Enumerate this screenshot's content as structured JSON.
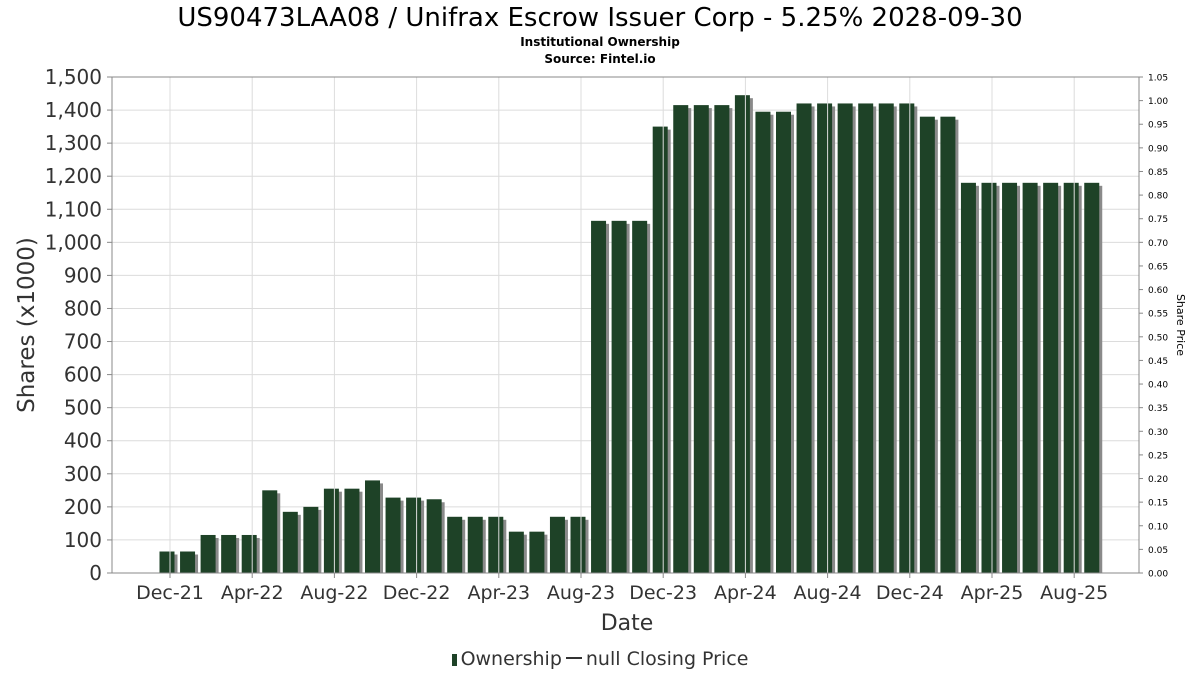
{
  "title": "US90473LAA08 / Unifrax Escrow Issuer Corp - 5.25% 2028-09-30",
  "subtitle1": "Institutional Ownership",
  "subtitle2": "Source: Fintel.io",
  "legend": {
    "ownership_label": "Ownership",
    "price_label": "null Closing Price"
  },
  "colors": {
    "bar": "#1e4227",
    "shadow": "#8a8a8a",
    "grid": "#dcdcdc"
  },
  "chart_data": {
    "type": "bar",
    "xlabel": "Date",
    "ylabel": "Shares (x1000)",
    "y2label": "Share Price",
    "ylim": [
      0,
      1500
    ],
    "y2lim": [
      0,
      1.05
    ],
    "yticks": [
      "0",
      "100",
      "200",
      "300",
      "400",
      "500",
      "600",
      "700",
      "800",
      "900",
      "1,000",
      "1,100",
      "1,200",
      "1,300",
      "1,400",
      "1,500"
    ],
    "y2ticks": [
      "0.00",
      "0.05",
      "0.10",
      "0.15",
      "0.20",
      "0.25",
      "0.30",
      "0.35",
      "0.40",
      "0.45",
      "0.50",
      "0.55",
      "0.60",
      "0.65",
      "0.70",
      "0.75",
      "0.80",
      "0.85",
      "0.90",
      "0.95",
      "1.00",
      "1.05"
    ],
    "xticks": [
      "Dec-21",
      "Apr-22",
      "Aug-22",
      "Dec-22",
      "Apr-23",
      "Aug-23",
      "Dec-23",
      "Apr-24",
      "Aug-24",
      "Dec-24",
      "Apr-25",
      "Aug-25"
    ],
    "grid": true,
    "series": [
      {
        "name": "Ownership",
        "values": [
          65,
          65,
          115,
          115,
          115,
          250,
          185,
          200,
          255,
          255,
          280,
          228,
          228,
          223,
          170,
          170,
          170,
          125,
          125,
          170,
          170,
          1065,
          1065,
          1065,
          1350,
          1415,
          1415,
          1415,
          1445,
          1395,
          1395,
          1420,
          1420,
          1420,
          1420,
          1420,
          1420,
          1380,
          1380,
          1180,
          1180,
          1180,
          1180,
          1180,
          1180,
          1180
        ]
      }
    ]
  }
}
